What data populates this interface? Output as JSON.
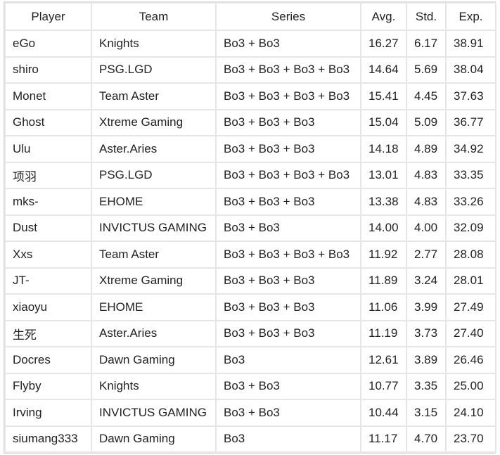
{
  "table": {
    "header": [
      "Player",
      "Team",
      "Series",
      "Avg.",
      "Std.",
      "Exp."
    ],
    "rows": [
      [
        "eGo",
        "Knights",
        "Bo3 + Bo3",
        "16.27",
        "6.17",
        "38.91"
      ],
      [
        "shiro",
        "PSG.LGD",
        "Bo3 + Bo3 + Bo3 + Bo3",
        "14.64",
        "5.69",
        "38.04"
      ],
      [
        "Monet",
        "Team Aster",
        "Bo3 + Bo3 + Bo3 + Bo3",
        "15.41",
        "4.45",
        "37.63"
      ],
      [
        "Ghost",
        "Xtreme Gaming",
        "Bo3 + Bo3 + Bo3",
        "15.04",
        "5.09",
        "36.77"
      ],
      [
        "Ulu",
        "Aster.Aries",
        "Bo3 + Bo3 + Bo3",
        "14.18",
        "4.89",
        "34.92"
      ],
      [
        "项羽",
        "PSG.LGD",
        "Bo3 + Bo3 + Bo3 + Bo3",
        "13.01",
        "4.83",
        "33.35"
      ],
      [
        "mks-",
        "EHOME",
        "Bo3 + Bo3 + Bo3",
        "13.38",
        "4.83",
        "33.26"
      ],
      [
        "Dust",
        "INVICTUS GAMING",
        "Bo3 + Bo3",
        "14.00",
        "4.00",
        "32.09"
      ],
      [
        "Xxs",
        "Team Aster",
        "Bo3 + Bo3 + Bo3 + Bo3",
        "11.92",
        "2.77",
        "28.08"
      ],
      [
        "JT-",
        "Xtreme Gaming",
        "Bo3 + Bo3 + Bo3",
        "11.89",
        "3.24",
        "28.01"
      ],
      [
        "xiaoyu",
        "EHOME",
        "Bo3 + Bo3 + Bo3",
        "11.06",
        "3.99",
        "27.49"
      ],
      [
        "生死",
        "Aster.Aries",
        "Bo3 + Bo3 + Bo3",
        "11.19",
        "3.73",
        "27.40"
      ],
      [
        "Docres",
        "Dawn Gaming",
        "Bo3",
        "12.61",
        "3.89",
        "26.46"
      ],
      [
        "Flyby",
        "Knights",
        "Bo3 + Bo3",
        "10.77",
        "3.35",
        "25.00"
      ],
      [
        "Irving",
        "INVICTUS GAMING",
        "Bo3 + Bo3",
        "10.44",
        "3.15",
        "24.10"
      ],
      [
        "siumang333",
        "Dawn Gaming",
        "Bo3",
        "11.17",
        "4.70",
        "23.70"
      ]
    ]
  }
}
